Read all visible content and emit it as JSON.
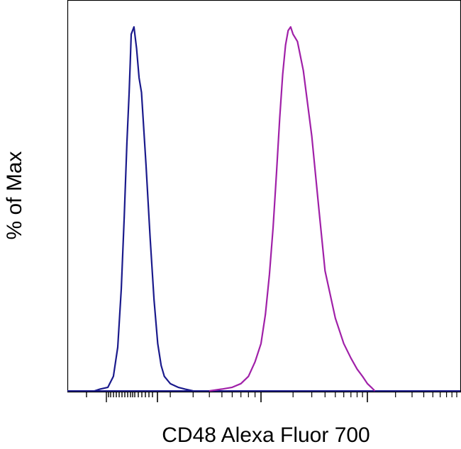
{
  "chart_data": {
    "type": "line",
    "title": "",
    "xlabel": "CD48 Alexa Fluor 700",
    "ylabel": "% of Max",
    "x_scale": "log (biexponential)",
    "y_range": [
      0,
      100
    ],
    "grid": false,
    "legend": "none",
    "series": [
      {
        "color": "#1a1a8c",
        "x": [
          15,
          20,
          30,
          40,
          50,
          60,
          70,
          80,
          90,
          95,
          100,
          105,
          110,
          115,
          120,
          130,
          140,
          150,
          160,
          170,
          180,
          200,
          230,
          260,
          300
        ],
        "y": [
          0,
          0.5,
          1,
          4,
          12,
          28,
          48,
          68,
          82,
          90,
          98,
          100,
          94,
          86,
          82,
          62,
          42,
          25,
          13,
          7,
          4,
          2,
          1,
          0.5,
          0
        ]
      },
      {
        "color": "#a020a8",
        "x": [
          400,
          500,
          600,
          700,
          800,
          900,
          1000,
          1100,
          1200,
          1300,
          1400,
          1500,
          1600,
          1700,
          1800,
          1900,
          2000,
          2200,
          2500,
          3000,
          3500,
          4000,
          5000,
          6000,
          7000,
          8000,
          9000,
          10000,
          11000,
          12000
        ],
        "y": [
          0,
          0.5,
          1,
          2,
          4,
          8,
          13,
          21,
          32,
          45,
          60,
          75,
          87,
          95,
          99,
          100,
          98,
          96,
          88,
          70,
          50,
          33,
          20,
          13,
          9,
          6,
          4,
          2,
          1,
          0
        ]
      }
    ]
  }
}
